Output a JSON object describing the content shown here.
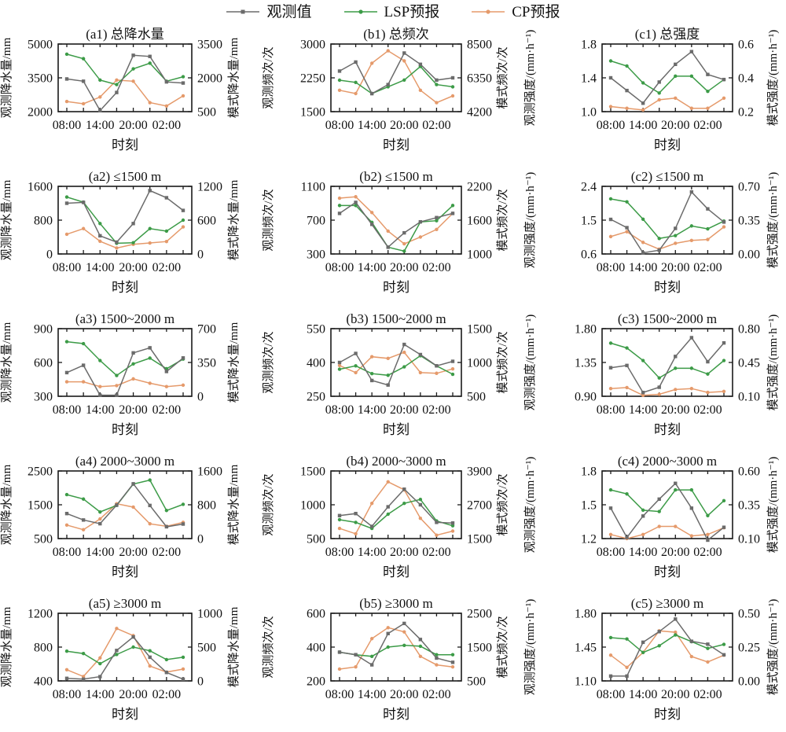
{
  "legend": [
    {
      "label": "观测值",
      "color": "#6b6b6b",
      "marker": "square"
    },
    {
      "label": "LSP预报",
      "color": "#3c9b47",
      "marker": "circle"
    },
    {
      "label": "CP预报",
      "color": "#e59a6b",
      "marker": "circle"
    }
  ],
  "x_axis": {
    "label": "时刻",
    "points": [
      "08:00",
      "11:00",
      "14:00",
      "17:00",
      "20:00",
      "23:00",
      "02:00",
      "05:00"
    ],
    "tick_labels": [
      "08:00",
      "14:00",
      "20:00",
      "02:00"
    ],
    "labeled_indices": [
      0,
      2,
      4,
      6
    ]
  },
  "chart_data": [
    {
      "id": "a1",
      "col": "a",
      "type": "line",
      "title": "(a1) 总降水量",
      "left_axis": {
        "label": "观测降水量/mm",
        "ticks": [
          "2000",
          "3500",
          "5000"
        ]
      },
      "right_axis": {
        "label": "模式降水量/mm",
        "ticks": [
          "500",
          "2000",
          "3500"
        ]
      },
      "series": [
        {
          "name": "观测值",
          "axis": "left",
          "values": [
            3450,
            3350,
            2050,
            2850,
            4500,
            4450,
            3320,
            3270
          ]
        },
        {
          "name": "LSP预报",
          "axis": "right",
          "values": [
            3050,
            2850,
            1900,
            1700,
            2400,
            2650,
            1850,
            2050
          ]
        },
        {
          "name": "CP预报",
          "axis": "right",
          "values": [
            950,
            850,
            1150,
            1900,
            1850,
            900,
            750,
            1200
          ]
        }
      ]
    },
    {
      "id": "b1",
      "col": "b",
      "type": "line",
      "title": "(b1) 总频次",
      "left_axis": {
        "label": "观测频次/次",
        "ticks": [
          "1500",
          "2250",
          "3000"
        ]
      },
      "right_axis": {
        "label": "模式频次/次",
        "ticks": [
          "4200",
          "6350",
          "8500"
        ]
      },
      "series": [
        {
          "name": "观测值",
          "axis": "left",
          "values": [
            2400,
            2600,
            1900,
            2100,
            2800,
            2550,
            2200,
            2250
          ]
        },
        {
          "name": "LSP预报",
          "axis": "right",
          "values": [
            6200,
            6060,
            5350,
            5780,
            6210,
            7070,
            5920,
            5780
          ]
        },
        {
          "name": "CP预报",
          "axis": "right",
          "values": [
            5560,
            5350,
            7280,
            8070,
            7430,
            5560,
            4770,
            5200
          ]
        }
      ]
    },
    {
      "id": "c1",
      "col": "c",
      "type": "line",
      "title": "(c1) 总强度",
      "left_axis": {
        "label": "观测强度/(mm·h⁻¹)",
        "ticks": [
          "1.0",
          "1.4",
          "1.8"
        ]
      },
      "right_axis": {
        "label": "模式强度/(mm·h⁻¹)",
        "ticks": [
          "0.2",
          "0.4",
          "0.6"
        ]
      },
      "series": [
        {
          "name": "观测值",
          "axis": "left",
          "values": [
            1.4,
            1.25,
            1.1,
            1.35,
            1.56,
            1.71,
            1.44,
            1.38
          ]
        },
        {
          "name": "LSP预报",
          "axis": "right",
          "values": [
            0.5,
            0.47,
            0.37,
            0.31,
            0.41,
            0.41,
            0.32,
            0.39
          ]
        },
        {
          "name": "CP预报",
          "axis": "right",
          "values": [
            0.23,
            0.22,
            0.21,
            0.27,
            0.28,
            0.22,
            0.22,
            0.28
          ]
        }
      ]
    },
    {
      "id": "a2",
      "col": "a",
      "type": "line",
      "title": "(a2) ≤1500 m",
      "left_axis": {
        "label": "观测降水量/mm",
        "ticks": [
          "0",
          "800",
          "1600"
        ]
      },
      "right_axis": {
        "label": "模式降水量/mm",
        "ticks": [
          "0",
          "600",
          "1200"
        ]
      },
      "series": [
        {
          "name": "观测值",
          "axis": "left",
          "values": [
            1200,
            1220,
            430,
            280,
            720,
            1500,
            1330,
            1030
          ]
        },
        {
          "name": "LSP预报",
          "axis": "right",
          "values": [
            1010,
            920,
            540,
            190,
            200,
            450,
            405,
            600
          ]
        },
        {
          "name": "CP预报",
          "axis": "right",
          "values": [
            350,
            450,
            225,
            105,
            170,
            195,
            220,
            480
          ]
        }
      ]
    },
    {
      "id": "b2",
      "col": "b",
      "type": "line",
      "title": "(b2) ≤1500 m",
      "left_axis": {
        "label": "观测频次/次",
        "ticks": [
          "300",
          "700",
          "1100"
        ]
      },
      "right_axis": {
        "label": "模式频次/次",
        "ticks": [
          "1000",
          "1600",
          "2200"
        ]
      },
      "series": [
        {
          "name": "观测值",
          "axis": "left",
          "values": [
            780,
            910,
            650,
            380,
            550,
            680,
            730,
            780
          ]
        },
        {
          "name": "LSP预报",
          "axis": "right",
          "values": [
            1860,
            1860,
            1560,
            1120,
            1050,
            1570,
            1590,
            1860
          ]
        },
        {
          "name": "CP预报",
          "axis": "right",
          "values": [
            1990,
            2015,
            1735,
            1405,
            1180,
            1300,
            1435,
            1720
          ]
        }
      ]
    },
    {
      "id": "c2",
      "col": "c",
      "type": "line",
      "title": "(c2) ≤1500 m",
      "left_axis": {
        "label": "观测强度/(mm·h⁻¹)",
        "ticks": [
          "0.6",
          "1.5",
          "2.4"
        ]
      },
      "right_axis": {
        "label": "模式强度/(mm·h⁻¹)",
        "ticks": [
          "0.00",
          "0.35",
          "0.70"
        ]
      },
      "series": [
        {
          "name": "观测值",
          "axis": "left",
          "values": [
            1.52,
            1.3,
            0.63,
            0.7,
            1.28,
            2.25,
            1.8,
            1.45
          ]
        },
        {
          "name": "LSP预报",
          "axis": "right",
          "values": [
            0.57,
            0.54,
            0.36,
            0.16,
            0.19,
            0.29,
            0.26,
            0.34
          ]
        },
        {
          "name": "CP预报",
          "axis": "right",
          "values": [
            0.18,
            0.23,
            0.12,
            0.05,
            0.11,
            0.14,
            0.15,
            0.28
          ]
        }
      ]
    },
    {
      "id": "a3",
      "col": "a",
      "type": "line",
      "title": "(a3) 1500~2000 m",
      "left_axis": {
        "label": "观测降水量/mm",
        "ticks": [
          "300",
          "600",
          "900"
        ]
      },
      "right_axis": {
        "label": "模式降水量/mm",
        "ticks": [
          "0",
          "350",
          "700"
        ]
      },
      "series": [
        {
          "name": "观测值",
          "axis": "left",
          "values": [
            510,
            575,
            310,
            310,
            685,
            730,
            520,
            640
          ]
        },
        {
          "name": "LSP预报",
          "axis": "right",
          "values": [
            565,
            545,
            370,
            215,
            335,
            395,
            285,
            385
          ]
        },
        {
          "name": "CP预报",
          "axis": "right",
          "values": [
            150,
            150,
            100,
            110,
            180,
            135,
            100,
            115
          ]
        }
      ]
    },
    {
      "id": "b3",
      "col": "b",
      "type": "line",
      "title": "(b3) 1500~2000 m",
      "left_axis": {
        "label": "观测频次/次",
        "ticks": [
          "250",
          "400",
          "550"
        ]
      },
      "right_axis": {
        "label": "模式频次/次",
        "ticks": [
          "500",
          "1000",
          "1500"
        ]
      },
      "series": [
        {
          "name": "观测值",
          "axis": "left",
          "values": [
            400,
            440,
            320,
            300,
            480,
            435,
            385,
            405
          ]
        },
        {
          "name": "LSP预报",
          "axis": "right",
          "values": [
            900,
            950,
            835,
            810,
            935,
            1100,
            950,
            825
          ]
        },
        {
          "name": "CP预报",
          "axis": "right",
          "values": [
            955,
            850,
            1085,
            1060,
            1150,
            850,
            840,
            905
          ]
        }
      ]
    },
    {
      "id": "c3",
      "col": "c",
      "type": "line",
      "title": "(c3) 1500~2000 m",
      "left_axis": {
        "label": "观测强度/(mm·h⁻¹)",
        "ticks": [
          "0.90",
          "1.35",
          "1.80"
        ]
      },
      "right_axis": {
        "label": "模式强度/(mm·h⁻¹)",
        "ticks": [
          "0.10",
          "0.45",
          "0.80"
        ]
      },
      "series": [
        {
          "name": "观测值",
          "axis": "left",
          "values": [
            1.28,
            1.31,
            0.95,
            1.02,
            1.43,
            1.68,
            1.36,
            1.61
          ]
        },
        {
          "name": "LSP预报",
          "axis": "right",
          "values": [
            0.65,
            0.6,
            0.47,
            0.29,
            0.39,
            0.39,
            0.33,
            0.47
          ]
        },
        {
          "name": "CP预报",
          "axis": "right",
          "values": [
            0.18,
            0.19,
            0.11,
            0.12,
            0.17,
            0.18,
            0.14,
            0.15
          ]
        }
      ]
    },
    {
      "id": "a4",
      "col": "a",
      "type": "line",
      "title": "(a4) 2000~3000 m",
      "left_axis": {
        "label": "观测降水量/mm",
        "ticks": [
          "500",
          "1500",
          "2500"
        ]
      },
      "right_axis": {
        "label": "模式降水量/mm",
        "ticks": [
          "0",
          "800",
          "1600"
        ]
      },
      "series": [
        {
          "name": "观测值",
          "axis": "left",
          "values": [
            1240,
            1050,
            940,
            1490,
            2120,
            1480,
            850,
            930
          ]
        },
        {
          "name": "LSP预报",
          "axis": "right",
          "values": [
            1040,
            935,
            630,
            785,
            1290,
            1385,
            665,
            810
          ]
        },
        {
          "name": "CP预报",
          "axis": "right",
          "values": [
            320,
            210,
            465,
            825,
            745,
            350,
            290,
            385
          ]
        }
      ]
    },
    {
      "id": "b4",
      "col": "b",
      "type": "line",
      "title": "(b4) 2000~3000 m",
      "left_axis": {
        "label": "观测频次/次",
        "ticks": [
          "500",
          "1000",
          "1500"
        ]
      },
      "right_axis": {
        "label": "模式频次/次",
        "ticks": [
          "1500",
          "2700",
          "3900"
        ]
      },
      "series": [
        {
          "name": "观测值",
          "axis": "left",
          "values": [
            840,
            870,
            680,
            970,
            1230,
            1000,
            740,
            730
          ]
        },
        {
          "name": "LSP预报",
          "axis": "right",
          "values": [
            2170,
            2075,
            1860,
            2365,
            2750,
            2890,
            2125,
            1955
          ]
        },
        {
          "name": "CP预报",
          "axis": "right",
          "values": [
            1860,
            1670,
            2750,
            3515,
            3230,
            2220,
            1620,
            1765
          ]
        }
      ]
    },
    {
      "id": "c4",
      "col": "c",
      "type": "line",
      "title": "(c4) 2000~3000 m",
      "left_axis": {
        "label": "观测强度/(mm·h⁻¹)",
        "ticks": [
          "1.2",
          "1.5",
          "1.8"
        ]
      },
      "right_axis": {
        "label": "模式强度/(mm·h⁻¹)",
        "ticks": [
          "0.10",
          "0.35",
          "0.60"
        ]
      },
      "series": [
        {
          "name": "观测值",
          "axis": "left",
          "values": [
            1.47,
            1.21,
            1.4,
            1.55,
            1.69,
            1.47,
            1.17,
            1.3
          ]
        },
        {
          "name": "LSP预报",
          "axis": "right",
          "values": [
            0.46,
            0.43,
            0.31,
            0.3,
            0.46,
            0.46,
            0.27,
            0.38
          ]
        },
        {
          "name": "CP预报",
          "axis": "right",
          "values": [
            0.13,
            0.1,
            0.13,
            0.19,
            0.19,
            0.12,
            0.13,
            0.18
          ]
        }
      ]
    },
    {
      "id": "a5",
      "col": "a",
      "type": "line",
      "title": "(a5) ≥3000 m",
      "left_axis": {
        "label": "观测降水量/mm",
        "ticks": [
          "400",
          "800",
          "1200"
        ]
      },
      "right_axis": {
        "label": "模式降水量/mm",
        "ticks": [
          "0",
          "500",
          "1000"
        ]
      },
      "series": [
        {
          "name": "观测值",
          "axis": "left",
          "values": [
            430,
            420,
            450,
            760,
            920,
            680,
            500,
            420
          ]
        },
        {
          "name": "LSP预报",
          "axis": "right",
          "values": [
            440,
            405,
            255,
            390,
            500,
            445,
            315,
            350
          ]
        },
        {
          "name": "CP预报",
          "axis": "right",
          "values": [
            165,
            65,
            340,
            775,
            670,
            220,
            130,
            175
          ]
        }
      ]
    },
    {
      "id": "b5",
      "col": "b",
      "type": "line",
      "title": "(b5) ≥3000 m",
      "left_axis": {
        "label": "观测频次/次",
        "ticks": [
          "200",
          "400",
          "600"
        ]
      },
      "right_axis": {
        "label": "模式频次/次",
        "ticks": [
          "500",
          "1500",
          "2500"
        ]
      },
      "series": [
        {
          "name": "观测值",
          "axis": "left",
          "values": [
            370,
            355,
            295,
            480,
            540,
            445,
            335,
            310
          ]
        },
        {
          "name": "LSP预报",
          "axis": "right",
          "values": [
            1350,
            1275,
            1225,
            1500,
            1550,
            1525,
            1275,
            1275
          ]
        },
        {
          "name": "CP预报",
          "axis": "right",
          "values": [
            850,
            915,
            1750,
            2075,
            1950,
            1225,
            975,
            915
          ]
        }
      ]
    },
    {
      "id": "c5",
      "col": "c",
      "type": "line",
      "title": "(c5) ≥3000 m",
      "left_axis": {
        "label": "观测强度/(mm·h⁻¹)",
        "ticks": [
          "1.10",
          "1.45",
          "1.80"
        ]
      },
      "right_axis": {
        "label": "模式强度/(mm·h⁻¹)",
        "ticks": [
          "0.00",
          "0.25",
          "0.50"
        ]
      },
      "series": [
        {
          "name": "观测值",
          "axis": "left",
          "values": [
            1.15,
            1.15,
            1.5,
            1.61,
            1.74,
            1.51,
            1.48,
            1.37
          ]
        },
        {
          "name": "LSP预报",
          "axis": "right",
          "values": [
            0.32,
            0.31,
            0.21,
            0.26,
            0.34,
            0.29,
            0.24,
            0.27
          ]
        },
        {
          "name": "CP预报",
          "axis": "right",
          "values": [
            0.19,
            0.1,
            0.21,
            0.37,
            0.36,
            0.18,
            0.14,
            0.19
          ]
        }
      ]
    }
  ]
}
